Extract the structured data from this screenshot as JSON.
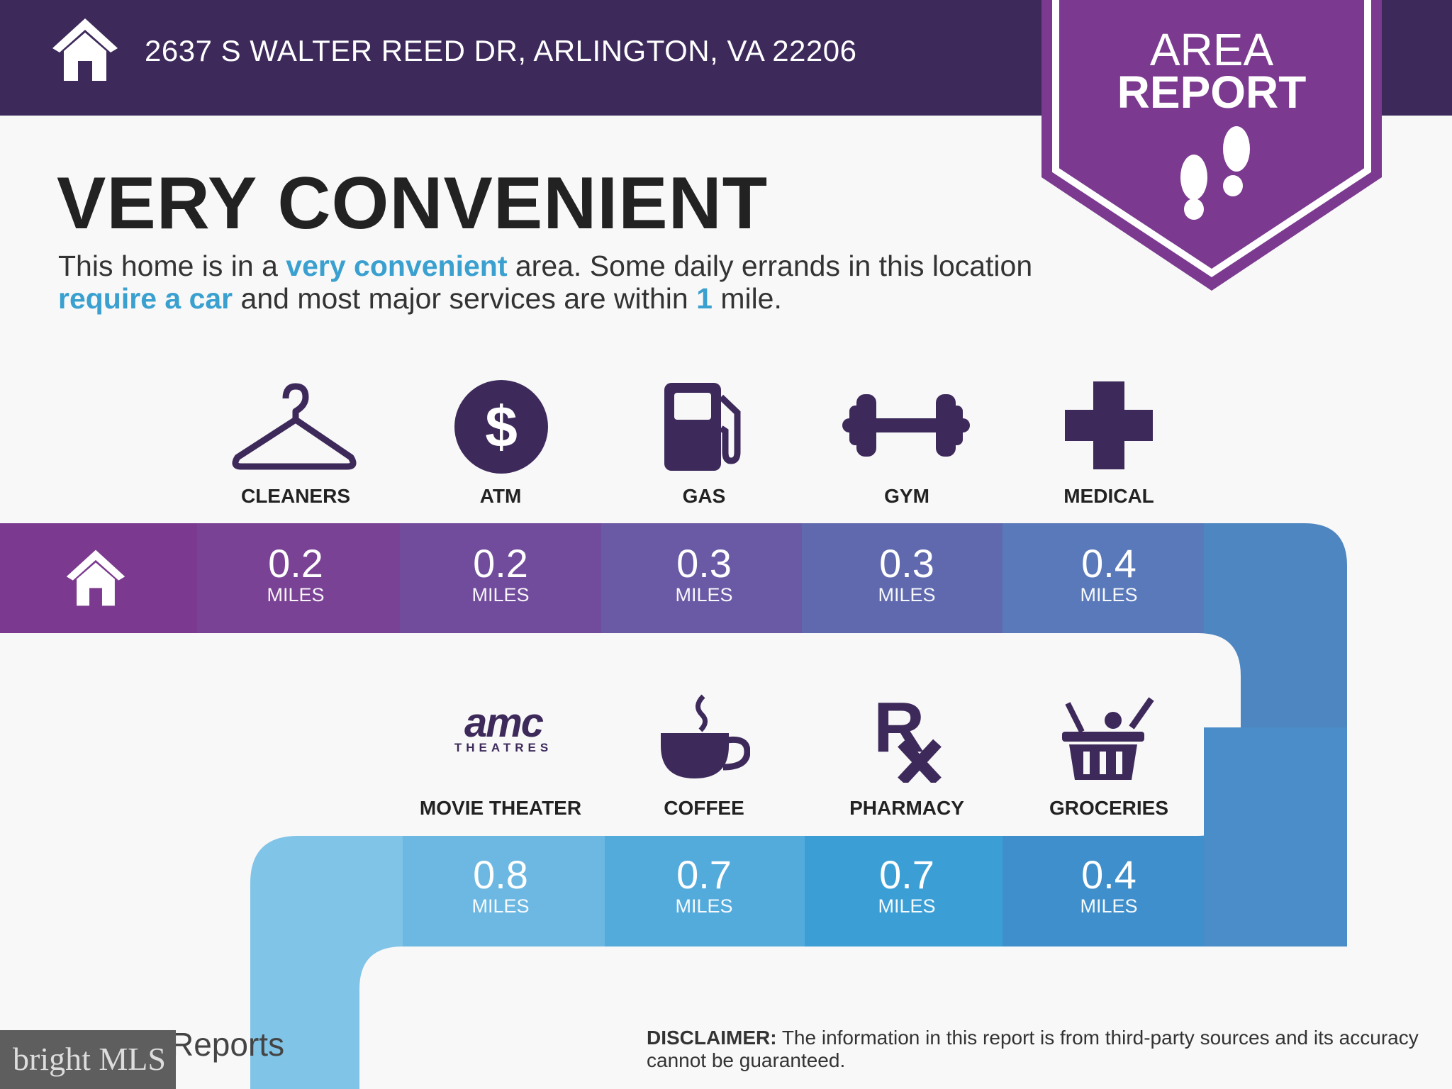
{
  "header": {
    "address": "2637 S WALTER REED DR, ARLINGTON, VA 22206",
    "icon": "home-icon"
  },
  "badge": {
    "line1": "AREA",
    "line2": "REPORT",
    "icon": "footprints-icon"
  },
  "main": {
    "title": "VERY CONVENIENT",
    "desc": {
      "p1": "This home is in a ",
      "h1": "very convenient",
      "p2": " area. Some daily errands in this location ",
      "h2": "require a car",
      "p3": " and most major services are within ",
      "h3": "1",
      "p4": " mile."
    }
  },
  "row1": [
    {
      "label": "CLEANERS",
      "value": "0.2",
      "unit": "MILES",
      "icon": "hanger-icon"
    },
    {
      "label": "ATM",
      "value": "0.2",
      "unit": "MILES",
      "icon": "dollar-icon"
    },
    {
      "label": "GAS",
      "value": "0.3",
      "unit": "MILES",
      "icon": "gas-pump-icon"
    },
    {
      "label": "GYM",
      "value": "0.3",
      "unit": "MILES",
      "icon": "dumbbell-icon"
    },
    {
      "label": "MEDICAL",
      "value": "0.4",
      "unit": "MILES",
      "icon": "medical-cross-icon"
    }
  ],
  "row2": [
    {
      "label": "MOVIE THEATER",
      "value": "0.8",
      "unit": "MILES",
      "icon": "amc-theatres-logo",
      "logo_text": "amc",
      "logo_sub": "THEATRES"
    },
    {
      "label": "COFFEE",
      "value": "0.7",
      "unit": "MILES",
      "icon": "coffee-icon"
    },
    {
      "label": "PHARMACY",
      "value": "0.7",
      "unit": "MILES",
      "icon": "rx-icon"
    },
    {
      "label": "GROCERIES",
      "value": "0.4",
      "unit": "MILES",
      "icon": "basket-icon"
    }
  ],
  "footer": {
    "disclaimer_label": "DISCLAIMER:",
    "disclaimer": " The information in this report is from third-party sources and its accuracy cannot be guaranteed.",
    "brand_partial": "Reports",
    "watermark": "bright MLS"
  },
  "colors": {
    "header": "#3d2a5b",
    "badge": "#7b3a8f",
    "icon": "#3d2a5b",
    "highlight": "#3aa0cf"
  }
}
